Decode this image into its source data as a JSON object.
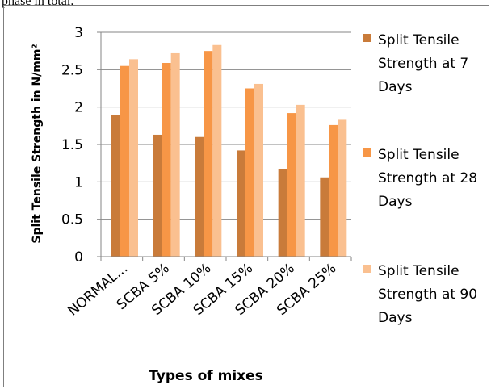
{
  "top_fragment": "phase in total.",
  "chart_data": {
    "type": "bar",
    "title": "",
    "xlabel": "Types of mixes",
    "ylabel": "Split Tensile Strength in  N/mm²",
    "ylim": [
      0,
      3
    ],
    "yticks": [
      "0",
      "0.5",
      "1",
      "1.5",
      "2",
      "2.5",
      "3"
    ],
    "grid": true,
    "legend_position": "right",
    "categories": [
      "NORMAL...",
      "SCBA  5%",
      "SCBA  10%",
      "SCBA  15%",
      "SCBA  20%",
      "SCBA  25%"
    ],
    "series": [
      {
        "name_lines": [
          "Split Tensile",
          "Strength at 7",
          "Days"
        ],
        "color": "#c97b3a",
        "values": [
          1.89,
          1.63,
          1.6,
          1.42,
          1.17,
          1.06
        ]
      },
      {
        "name_lines": [
          "Split Tensile",
          "Strength at 28",
          "Days"
        ],
        "color": "#f79646",
        "values": [
          2.55,
          2.59,
          2.75,
          2.25,
          1.92,
          1.76
        ]
      },
      {
        "name_lines": [
          "Split Tensile",
          "Strength at 90",
          "Days"
        ],
        "color": "#fac090",
        "values": [
          2.64,
          2.72,
          2.83,
          2.31,
          2.03,
          1.83
        ]
      }
    ]
  }
}
